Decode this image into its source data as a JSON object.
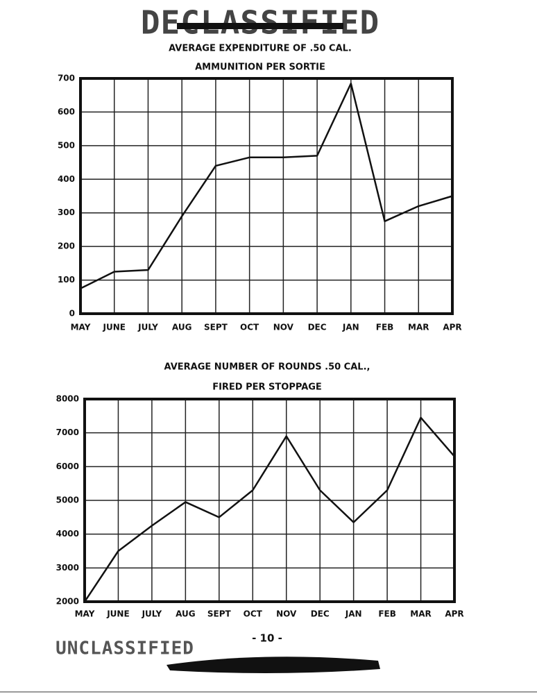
{
  "header_stamp": "DECLASSIFIED",
  "page_number": "- 10 -",
  "footer_stamp": "UNCLASSIFIED",
  "chart_data": [
    {
      "type": "line",
      "title": "AVERAGE EXPENDITURE OF .50 CAL.",
      "subtitle": "AMMUNITION PER SORTIE",
      "categories": [
        "MAY",
        "JUNE",
        "JULY",
        "AUG",
        "SEPT",
        "OCT",
        "NOV",
        "DEC",
        "JAN",
        "FEB",
        "MAR",
        "APR"
      ],
      "values": [
        75,
        125,
        130,
        290,
        440,
        465,
        465,
        470,
        685,
        275,
        320,
        350
      ],
      "color": "#111111",
      "ylim": [
        0,
        700
      ],
      "yticks": [
        0,
        100,
        200,
        300,
        400,
        500,
        600,
        700
      ],
      "grid": true
    },
    {
      "type": "line",
      "title": "AVERAGE NUMBER OF ROUNDS .50 CAL.,",
      "subtitle": "FIRED PER STOPPAGE",
      "categories": [
        "MAY",
        "JUNE",
        "JULY",
        "AUG",
        "SEPT",
        "OCT",
        "NOV",
        "DEC",
        "JAN",
        "FEB",
        "MAR",
        "APR"
      ],
      "values": [
        2000,
        3500,
        4250,
        4950,
        4500,
        5300,
        6900,
        5300,
        4350,
        5300,
        7450,
        6300
      ],
      "color": "#111111",
      "ylim": [
        2000,
        8000
      ],
      "yticks": [
        2000,
        3000,
        4000,
        5000,
        6000,
        7000,
        8000
      ],
      "grid": true
    }
  ]
}
